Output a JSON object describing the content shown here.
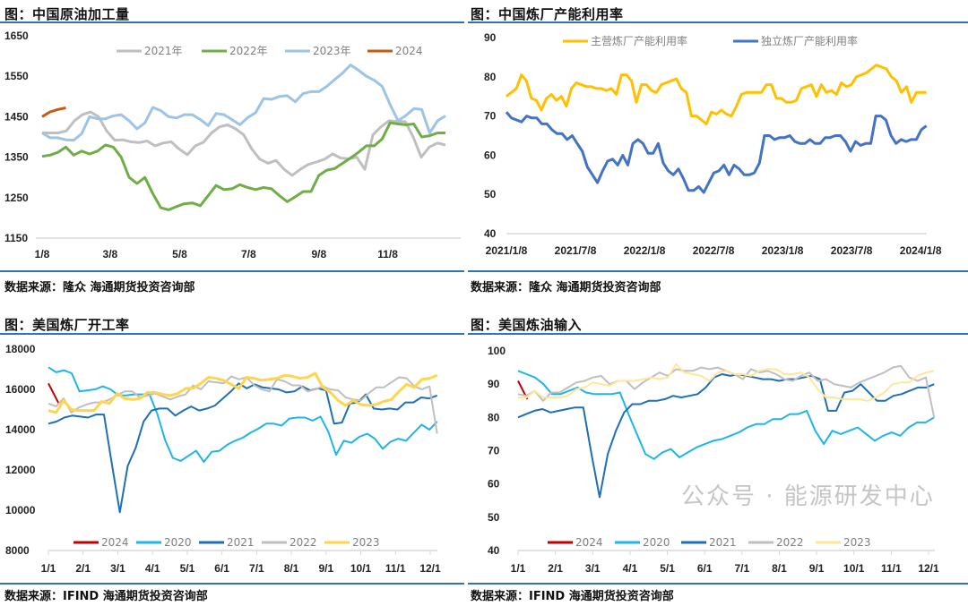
{
  "panels": [
    {
      "title": "图：中国原油加工量",
      "source": "数据来源：隆众   海通期货投资咨询部"
    },
    {
      "title": "图：中国炼厂产能利用率",
      "source": "数据来源：隆众   海通期货投资咨询部"
    },
    {
      "title": "图：美国炼厂开工率",
      "source": "数据来源：IFIND   海通期货投资咨询部"
    },
    {
      "title": "图：美国炼油输入",
      "source": "数据来源：IFIND   海通期货投资咨询部"
    }
  ],
  "watermark": {
    "text": "公众号 · 能源研发中心"
  },
  "chart_data": [
    {
      "type": "line",
      "title": "中国原油加工量",
      "ylim": [
        1150,
        1650
      ],
      "xlim": [
        0,
        51
      ],
      "yticks": [
        1150,
        1250,
        1350,
        1450,
        1550,
        1650
      ],
      "xticks": [
        {
          "v": 0,
          "label": "1/8"
        },
        {
          "v": 8.6,
          "label": "3/8"
        },
        {
          "v": 17.4,
          "label": "5/8"
        },
        {
          "v": 26.1,
          "label": "7/8"
        },
        {
          "v": 35,
          "label": "9/8"
        },
        {
          "v": 43.7,
          "label": "11/8"
        }
      ],
      "legend_position": "top",
      "series": [
        {
          "name": "2021年",
          "color": "#bfbfbf",
          "x_start": 0,
          "x_end": 51,
          "values": [
            1410,
            1410,
            1410,
            1415,
            1440,
            1455,
            1462,
            1450,
            1415,
            1392,
            1393,
            1388,
            1386,
            1390,
            1378,
            1385,
            1388,
            1370,
            1356,
            1378,
            1387,
            1410,
            1425,
            1430,
            1420,
            1405,
            1370,
            1345,
            1335,
            1342,
            1320,
            1305,
            1320,
            1332,
            1338,
            1345,
            1358,
            1348,
            1346,
            1350,
            1320,
            1405,
            1425,
            1440,
            1438,
            1438,
            1400,
            1350,
            1375,
            1385,
            1380
          ]
        },
        {
          "name": "2022年",
          "color": "#70ad47",
          "x_start": 0,
          "x_end": 51,
          "values": [
            1352,
            1355,
            1362,
            1375,
            1355,
            1365,
            1358,
            1365,
            1380,
            1375,
            1350,
            1300,
            1285,
            1300,
            1260,
            1225,
            1220,
            1228,
            1235,
            1237,
            1230,
            1255,
            1280,
            1270,
            1272,
            1282,
            1275,
            1270,
            1275,
            1272,
            1255,
            1240,
            1252,
            1265,
            1265,
            1305,
            1318,
            1322,
            1335,
            1348,
            1362,
            1378,
            1378,
            1395,
            1435,
            1432,
            1430,
            1432,
            1400,
            1403,
            1410,
            1410
          ]
        },
        {
          "name": "2023年",
          "color": "#9dc3e6",
          "x_start": 0,
          "x_end": 51,
          "values": [
            1410,
            1398,
            1398,
            1393,
            1392,
            1408,
            1450,
            1445,
            1445,
            1452,
            1455,
            1440,
            1420,
            1435,
            1473,
            1465,
            1450,
            1447,
            1455,
            1455,
            1443,
            1428,
            1458,
            1455,
            1443,
            1430,
            1448,
            1460,
            1495,
            1493,
            1500,
            1502,
            1487,
            1507,
            1512,
            1512,
            1525,
            1542,
            1558,
            1578,
            1565,
            1550,
            1540,
            1525,
            1480,
            1440,
            1453,
            1470,
            1468,
            1410,
            1440,
            1452
          ]
        },
        {
          "name": "2024",
          "color": "#c55a11",
          "x_start": 0,
          "x_end": 3,
          "values": [
            1450,
            1462,
            1468,
            1472
          ]
        }
      ]
    },
    {
      "type": "line",
      "title": "中国炼厂产能利用率",
      "ylim": [
        40,
        90
      ],
      "xlim": [
        0,
        37
      ],
      "yticks": [
        40,
        50,
        60,
        70,
        80,
        90
      ],
      "xticks": [
        {
          "v": 0,
          "label": "2021/1/8"
        },
        {
          "v": 6,
          "label": "2021/7/8"
        },
        {
          "v": 12,
          "label": "2022/1/8"
        },
        {
          "v": 18,
          "label": "2022/7/8"
        },
        {
          "v": 24,
          "label": "2023/1/8"
        },
        {
          "v": 30,
          "label": "2023/7/8"
        },
        {
          "v": 36,
          "label": "2024/1/8"
        }
      ],
      "legend_position": "top",
      "series": [
        {
          "name": "主营炼厂产能利用率",
          "color": "#ffc000",
          "x_start": 0,
          "x_end": 36.5,
          "values": [
            75,
            76,
            77,
            80.5,
            79,
            74.5,
            74,
            71.5,
            74.5,
            75.5,
            74,
            75,
            72.5,
            77,
            78.5,
            78,
            77.5,
            77.5,
            77,
            77,
            76.5,
            77,
            75.5,
            80.5,
            80.5,
            79,
            73.5,
            78,
            78,
            76.5,
            76,
            78,
            78.5,
            79,
            79.5,
            77,
            76,
            70,
            70,
            69,
            68,
            71,
            70.5,
            71.5,
            70.5,
            70,
            72.5,
            75.5,
            76,
            76,
            76,
            76,
            78,
            78,
            74.5,
            74.5,
            73.5,
            73.5,
            74,
            77,
            77.5,
            78,
            75,
            78,
            76,
            76.5,
            75.5,
            78.5,
            77.5,
            78,
            80,
            80.5,
            81,
            82,
            83,
            82.5,
            82,
            80,
            79,
            76,
            77.5,
            73.5,
            76,
            76,
            76
          ]
        },
        {
          "name": "独立炼厂产能利用率",
          "color": "#4472c4",
          "x_start": 0,
          "x_end": 36.5,
          "values": [
            71,
            69.5,
            69,
            68.5,
            70,
            69.5,
            69.5,
            68,
            68,
            66.5,
            65.5,
            65.5,
            64,
            65,
            63,
            61,
            57,
            55,
            53,
            56,
            58.5,
            59,
            57.5,
            60,
            57.5,
            63,
            64,
            63,
            60.5,
            60.5,
            63,
            58,
            56,
            55,
            56.5,
            54,
            51,
            51,
            52,
            50.5,
            53,
            55.5,
            56,
            57.5,
            55,
            57.5,
            56.5,
            55,
            55,
            55.5,
            58,
            65,
            65,
            64,
            64.5,
            64.5,
            65,
            63.5,
            63,
            63,
            64,
            63,
            63,
            64.5,
            64.5,
            65,
            65,
            63.5,
            61,
            63.5,
            62.5,
            63,
            63,
            70,
            70,
            69,
            65,
            63,
            64,
            63.5,
            64,
            64,
            66.5,
            67.5
          ]
        }
      ]
    },
    {
      "type": "line",
      "title": "美国炼厂开工率",
      "ylim": [
        8000,
        18000
      ],
      "xlim": [
        0,
        11
      ],
      "yticks": [
        8000,
        10000,
        12000,
        14000,
        16000,
        18000
      ],
      "xticks": [
        {
          "v": 0,
          "label": "1/1"
        },
        {
          "v": 1,
          "label": "2/1"
        },
        {
          "v": 2,
          "label": "3/1"
        },
        {
          "v": 3,
          "label": "4/1"
        },
        {
          "v": 4,
          "label": "5/1"
        },
        {
          "v": 5,
          "label": "6/1"
        },
        {
          "v": 6,
          "label": "7/1"
        },
        {
          "v": 7,
          "label": "8/1"
        },
        {
          "v": 8,
          "label": "9/1"
        },
        {
          "v": 9,
          "label": "10/1"
        },
        {
          "v": 10,
          "label": "11/1"
        },
        {
          "v": 11,
          "label": "12/1"
        }
      ],
      "legend_position": "bottom",
      "series": [
        {
          "name": "2024",
          "color": "#c00000",
          "x_start": 0,
          "x_end": 0.3,
          "values": [
            16300,
            15300
          ]
        },
        {
          "name": "2020",
          "color": "#1fb5e8",
          "x_start": 0,
          "x_end": 11.2,
          "values": [
            17100,
            16850,
            16950,
            16800,
            15900,
            15950,
            16000,
            16150,
            16000,
            15700,
            15700,
            15750,
            15750,
            15750,
            14800,
            13500,
            12600,
            12450,
            12700,
            12950,
            12400,
            12900,
            12950,
            13250,
            13450,
            13600,
            13850,
            14050,
            14300,
            14300,
            14200,
            14550,
            14600,
            14600,
            14450,
            14650,
            13900,
            12750,
            13450,
            13350,
            13650,
            13800,
            13550,
            13050,
            13400,
            13550,
            13450,
            13850,
            14250,
            14000,
            14400
          ]
        },
        {
          "name": "2021",
          "color": "#1f6fb5",
          "x_start": 0,
          "x_end": 11.2,
          "values": [
            14300,
            14400,
            14600,
            14700,
            14650,
            14600,
            14750,
            14750,
            12300,
            9900,
            12200,
            13100,
            14400,
            14950,
            15050,
            15050,
            14700,
            14950,
            15150,
            14950,
            15050,
            15200,
            15550,
            15900,
            16300,
            16050,
            16250,
            16100,
            16050,
            16000,
            15850,
            15900,
            16150,
            15950,
            16050,
            15950,
            14300,
            14350,
            15300,
            15350,
            15750,
            15050,
            15000,
            15050,
            15000,
            15350,
            15350,
            15600,
            15550,
            15700
          ]
        },
        {
          "name": "2022",
          "color": "#bfbfbf",
          "x_start": 0,
          "x_end": 11.2,
          "values": [
            15300,
            15150,
            15550,
            14850,
            15100,
            15250,
            15350,
            15350,
            15500,
            15700,
            15900,
            15900,
            15600,
            15700,
            15800,
            15650,
            15500,
            15650,
            15750,
            16200,
            16000,
            16400,
            16350,
            16300,
            16650,
            16500,
            16600,
            16200,
            16000,
            15900,
            16500,
            16400,
            16200,
            16200,
            15900,
            16000,
            16150,
            16000,
            15950,
            15600,
            15500,
            15450,
            15800,
            16100,
            16100,
            16350,
            16600,
            16550,
            16150,
            16000,
            16150,
            13800
          ]
        },
        {
          "name": "2023",
          "color": "#ffd54f",
          "x_start": 0,
          "x_end": 11.2,
          "values": [
            14950,
            14850,
            15450,
            15000,
            14950,
            14950,
            14950,
            15400,
            15300,
            15800,
            15550,
            15500,
            15550,
            15850,
            15850,
            15750,
            15700,
            15800,
            16050,
            16050,
            16300,
            16600,
            16550,
            16450,
            16250,
            16050,
            16600,
            16550,
            16450,
            16500,
            16550,
            16700,
            16650,
            16550,
            16600,
            16800,
            16100,
            15850,
            15450,
            15200,
            15450,
            15250,
            15200,
            15250,
            15400,
            15500,
            15900,
            16250,
            16100,
            16500,
            16550,
            16700
          ]
        }
      ]
    },
    {
      "type": "line",
      "title": "美国炼油输入",
      "ylim": [
        40,
        100
      ],
      "xlim": [
        0,
        11
      ],
      "yticks": [
        40,
        50,
        60,
        70,
        80,
        90,
        100
      ],
      "xticks": [
        {
          "v": 0,
          "label": "1/1"
        },
        {
          "v": 1,
          "label": "2/1"
        },
        {
          "v": 2,
          "label": "3/1"
        },
        {
          "v": 3,
          "label": "4/1"
        },
        {
          "v": 4,
          "label": "5/1"
        },
        {
          "v": 5,
          "label": "6/1"
        },
        {
          "v": 6,
          "label": "7/1"
        },
        {
          "v": 7,
          "label": "8/1"
        },
        {
          "v": 8,
          "label": "9/1"
        },
        {
          "v": 9,
          "label": "10/1"
        },
        {
          "v": 10,
          "label": "11/1"
        },
        {
          "v": 11,
          "label": "12/1"
        }
      ],
      "legend_position": "bottom",
      "series": [
        {
          "name": "2024",
          "color": "#c00000",
          "x_start": 0,
          "x_end": 0.25,
          "values": [
            91,
            85.5
          ]
        },
        {
          "name": "2020",
          "color": "#1fb5e8",
          "x_start": 0,
          "x_end": 11.15,
          "values": [
            94,
            93,
            92,
            90,
            87,
            87,
            88,
            89,
            87.5,
            87,
            87,
            87,
            87.5,
            81,
            75,
            69,
            67.5,
            69.5,
            70.5,
            68,
            69.5,
            71,
            72,
            73,
            73.5,
            74.5,
            75.5,
            77,
            78,
            78,
            79.5,
            79.5,
            81,
            81,
            82,
            76,
            72,
            76,
            75,
            76,
            77,
            75,
            73,
            74.5,
            75.5,
            74.5,
            77,
            78.5,
            78.5,
            80
          ]
        },
        {
          "name": "2021",
          "color": "#1f6fb5",
          "x_start": 0,
          "x_end": 11.15,
          "values": [
            80,
            81,
            82,
            82.5,
            81.5,
            82,
            82.5,
            83,
            83,
            69,
            56,
            69,
            76,
            81.5,
            84,
            84,
            85,
            85,
            85.5,
            86.5,
            86,
            86.5,
            87,
            89,
            92,
            93,
            92.5,
            93,
            92.5,
            92,
            91.5,
            91.5,
            91,
            91.5,
            91.5,
            92,
            92.5,
            91.5,
            82,
            82,
            87.5,
            88,
            90,
            87.5,
            85,
            85,
            86.5,
            87,
            88,
            89,
            89,
            90
          ]
        },
        {
          "name": "2022",
          "color": "#bfbfbf",
          "x_start": 0,
          "x_end": 11.15,
          "values": [
            87,
            86.5,
            88,
            85,
            87.5,
            87.5,
            89,
            90.5,
            91,
            92,
            92.5,
            90,
            91,
            91,
            88.5,
            90.5,
            92,
            93.5,
            92.5,
            94.5,
            94,
            94,
            95,
            94.5,
            95,
            94,
            93,
            91.5,
            94.5,
            93.5,
            94,
            93,
            91.5,
            91,
            92.5,
            93.5,
            91,
            91.5,
            90,
            89.5,
            89,
            90.5,
            91.5,
            92.5,
            93.5,
            95,
            95.5,
            92,
            91,
            92,
            80
          ]
        },
        {
          "name": "2023",
          "color": "#ffe699",
          "x_start": 0,
          "x_end": 11.15,
          "values": [
            86,
            86,
            88,
            86,
            86,
            86,
            86.5,
            88.5,
            89,
            90.5,
            90,
            89.5,
            91,
            91,
            91,
            91.5,
            92,
            91.5,
            92,
            96,
            93.5,
            93,
            92.5,
            91,
            93.5,
            94,
            93,
            93,
            92.5,
            94,
            94.5,
            94.5,
            93,
            93,
            93.5,
            92,
            88.5,
            86,
            86,
            85.5,
            85.5,
            85.5,
            85,
            86,
            87.5,
            90,
            90.5,
            90.5,
            92.5,
            93.5,
            94
          ]
        }
      ]
    }
  ]
}
